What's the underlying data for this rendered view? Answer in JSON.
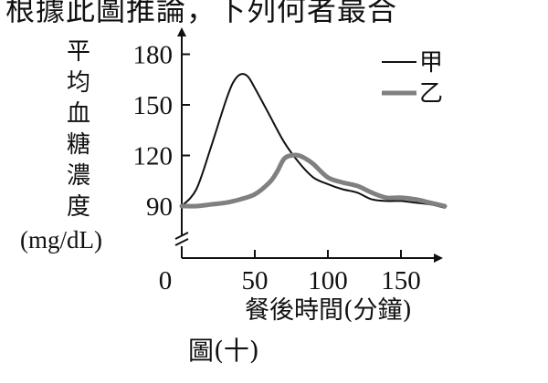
{
  "header": {
    "text": "根據此圖推論，下列何者最合"
  },
  "figure": {
    "caption": "圖(十)"
  },
  "chart_data": {
    "type": "line",
    "title": "",
    "ylabel": "平均血糖濃度",
    "yunit": "(mg/dL)",
    "xlabel": "餐後時間(分鐘)",
    "xlim": [
      0,
      180
    ],
    "ylim": [
      65,
      185
    ],
    "y_axis_break": true,
    "y_ticks": [
      90,
      120,
      150,
      180
    ],
    "x_ticks": [
      0,
      50,
      100,
      150
    ],
    "grid": false,
    "legend": "top-right",
    "series": [
      {
        "name": "甲",
        "color": "#111111",
        "stroke_style": "thin",
        "x": [
          0,
          10,
          20,
          30,
          35,
          40,
          45,
          50,
          60,
          70,
          80,
          90,
          100,
          110,
          120,
          130,
          140,
          150,
          160,
          170,
          180
        ],
        "y": [
          90,
          100,
          125,
          152,
          163,
          168,
          167,
          160,
          144,
          128,
          116,
          107,
          103,
          100,
          98,
          94,
          93,
          93,
          92,
          91,
          89
        ]
      },
      {
        "name": "乙",
        "color": "#808080",
        "stroke_style": "thick",
        "x": [
          0,
          10,
          20,
          30,
          40,
          50,
          60,
          65,
          70,
          75,
          80,
          85,
          90,
          100,
          110,
          120,
          130,
          140,
          150,
          160,
          170,
          180
        ],
        "y": [
          90,
          90,
          91,
          92,
          94,
          97,
          104,
          110,
          118,
          120,
          120,
          118,
          115,
          107,
          104,
          102,
          98,
          95,
          95,
          94,
          92,
          90
        ]
      }
    ]
  }
}
